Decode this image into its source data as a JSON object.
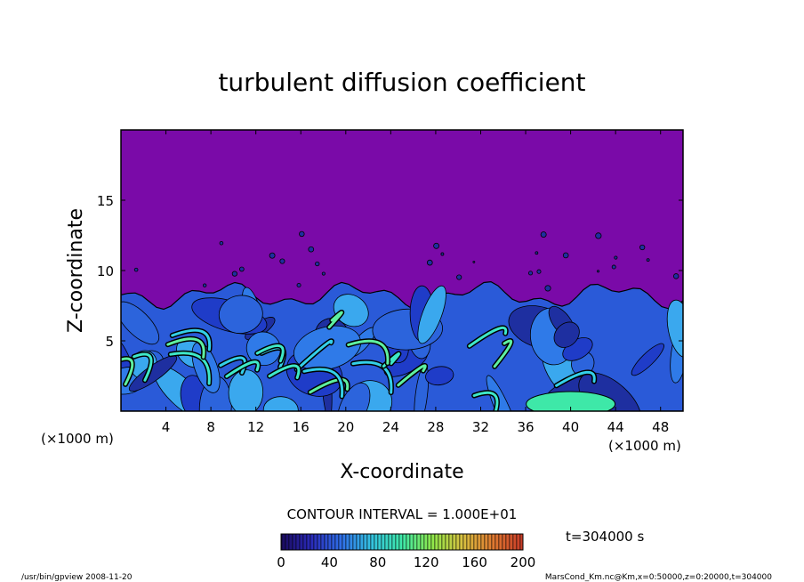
{
  "chart_data": {
    "type": "heatmap",
    "title": "turbulent diffusion coefficient",
    "xlabel": "X-coordinate",
    "ylabel": "Z-coordinate",
    "x_unit_label": "(×1000 m)",
    "x_unit_label_left": "(×1000 m)",
    "xlim": [
      0,
      50
    ],
    "ylim": [
      0,
      20
    ],
    "x_ticks": [
      4,
      8,
      12,
      16,
      20,
      24,
      28,
      32,
      36,
      40,
      44,
      48
    ],
    "y_ticks": [
      5,
      10,
      15
    ],
    "contour_interval_label": "CONTOUR INTERVAL = 1.000E+01",
    "colorbar": {
      "range": [
        0,
        200
      ],
      "ticks": [
        0,
        40,
        80,
        120,
        160,
        200
      ],
      "colors": [
        "#1a0a5e",
        "#2a2ab8",
        "#2f6fe8",
        "#34c3e0",
        "#3ee8a8",
        "#8fe84a",
        "#d8c040",
        "#e07a30",
        "#c83a28"
      ]
    },
    "time_label": "t=304000 s",
    "background_color": "#7a0aa8",
    "mixed_layer_top_z": 8,
    "footer_left": "/usr/bin/gpview   2008-11-20",
    "footer_right": "MarsCond_Km.nc@Km,x=0:50000,z=0:20000,t=304000"
  }
}
